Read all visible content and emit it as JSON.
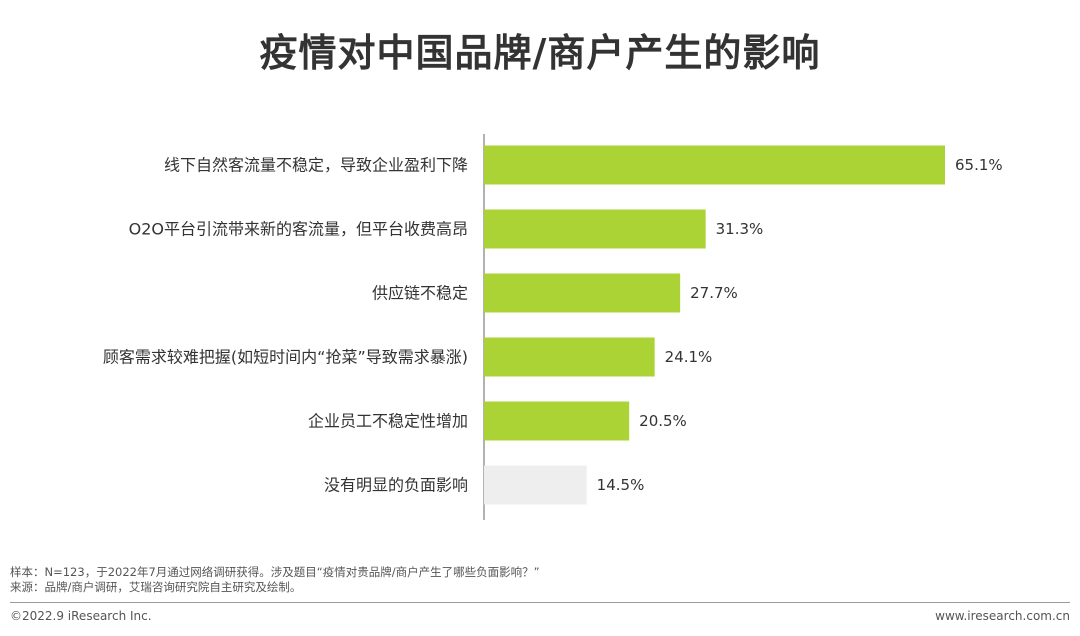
{
  "title": "疫情对中国品牌/商户产生的影响",
  "chart_data": {
    "type": "bar",
    "orientation": "horizontal",
    "categories": [
      "线下自然客流量不稳定，导致企业盈利下降",
      "O2O平台引流带来新的客流量，但平台收费高昂",
      "供应链不稳定",
      "顾客需求较难把握(如短时间内“抢菜”导致需求暴涨)",
      "企业员工不稳定性增加",
      "没有明显的负面影响"
    ],
    "values": [
      65.1,
      31.3,
      27.7,
      24.1,
      20.5,
      14.5
    ],
    "value_labels": [
      "65.1%",
      "31.3%",
      "27.7%",
      "24.1%",
      "20.5%",
      "14.5%"
    ],
    "unit": "%",
    "xlim": [
      0,
      65.1
    ],
    "grid": false,
    "legend": "none",
    "colors": {
      "bar": "#abd335",
      "bar_neutral": "#eeeeee",
      "axis": "#999999"
    }
  },
  "notes": {
    "sample": "样本：N=123，于2022年7月通过网络调研获得。涉及题目“疫情对贵品牌/商户产生了哪些负面影响？”",
    "source": "来源：品牌/商户调研，艾瑞咨询研究院自主研究及绘制。"
  },
  "footer": {
    "copyright": "©2022.9 iResearch Inc.",
    "website": "www.iresearch.com.cn"
  }
}
